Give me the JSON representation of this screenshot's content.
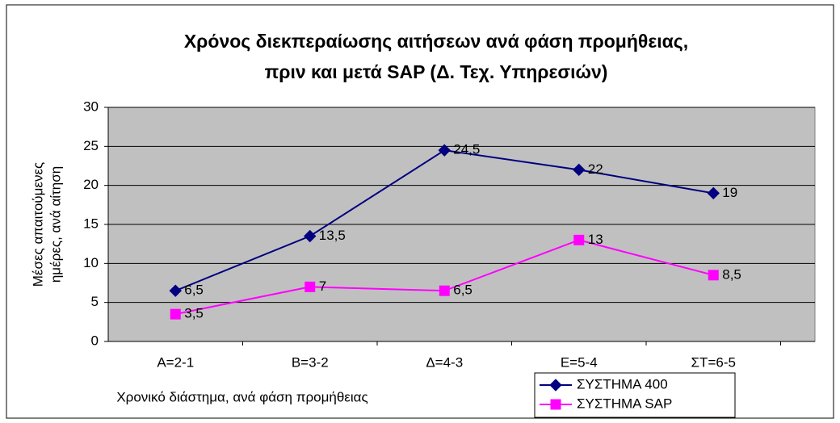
{
  "chart_data": {
    "type": "line",
    "title": [
      "Χρόνος διεκπεραίωσης αιτήσεων ανά φάση προμήθειας,",
      "πριν και μετά SAP (Δ. Τεχ. Υπηρεσιών)"
    ],
    "y_label": [
      "Μέσες απαιτούμενες",
      "ημέρες, ανά αίτηση"
    ],
    "x_label": "Χρονικό διάστημα, ανά φάση προμήθειας",
    "categories": [
      "Α=2-1",
      "Β=3-2",
      "Δ=4-3",
      "Ε=5-4",
      "ΣΤ=6-5"
    ],
    "series": [
      {
        "name": "ΣΥΣΤΗΜΑ 400",
        "color": "#000080",
        "marker": "diamond",
        "values": [
          6.5,
          13.5,
          24.5,
          22,
          19
        ],
        "value_labels": [
          "6,5",
          "13,5",
          "24,5",
          "22",
          "19"
        ]
      },
      {
        "name": "ΣΥΣΤΗΜΑ SAP",
        "color": "#ff00ff",
        "marker": "square",
        "values": [
          3.5,
          7,
          6.5,
          13,
          8.5
        ],
        "value_labels": [
          "3,5",
          "7",
          "6,5",
          "13",
          "8,5"
        ]
      }
    ],
    "ylim": [
      0,
      30
    ],
    "yticks": [
      0,
      5,
      10,
      15,
      20,
      25,
      30
    ],
    "grid": true,
    "legend": "bottom-right"
  }
}
